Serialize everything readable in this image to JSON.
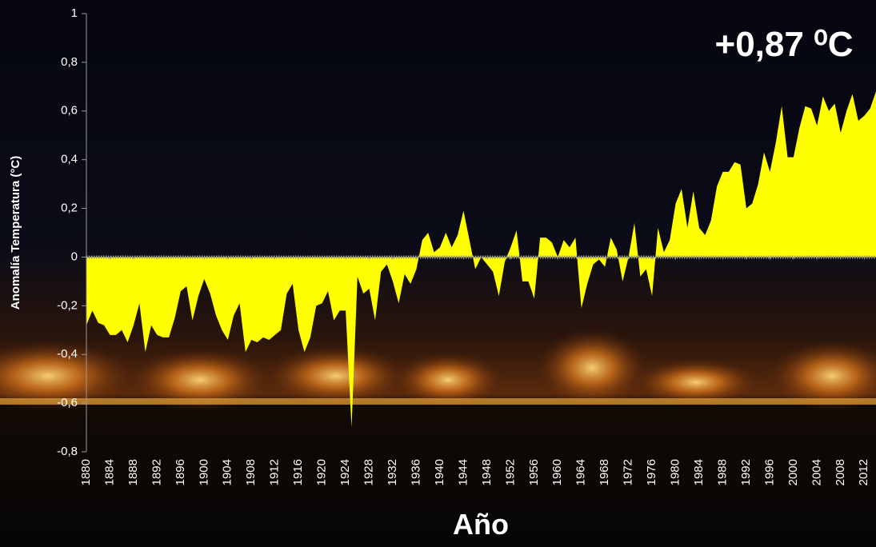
{
  "chart_data": {
    "type": "area",
    "annotation": "+0,87 ⁰C",
    "y_label": "Anomalía Temperatura (°C)",
    "x_label": "Año",
    "color": "#ffff00",
    "xlim": [
      1880,
      2014
    ],
    "xticks": [
      1880,
      1884,
      1888,
      1892,
      1896,
      1900,
      1904,
      1908,
      1912,
      1916,
      1920,
      1924,
      1928,
      1932,
      1936,
      1940,
      1944,
      1948,
      1952,
      1956,
      1960,
      1964,
      1968,
      1972,
      1976,
      1980,
      1984,
      1988,
      1992,
      1996,
      2000,
      2004,
      2008,
      2012
    ],
    "ylim": [
      -0.8,
      1
    ],
    "yticks": [
      {
        "value": -0.8,
        "label": "-0,8"
      },
      {
        "value": -0.6,
        "label": "-0,6"
      },
      {
        "value": -0.4,
        "label": "-0,4"
      },
      {
        "value": -0.2,
        "label": "-0,2"
      },
      0,
      {
        "value": 0.2,
        "label": "0,2"
      },
      {
        "value": 0.4,
        "label": "0,4"
      },
      {
        "value": 0.6,
        "label": "0,6"
      },
      {
        "value": 0.8,
        "label": "0,8"
      },
      1
    ],
    "x": [
      1880,
      1881,
      1882,
      1883,
      1884,
      1885,
      1886,
      1887,
      1888,
      1889,
      1890,
      1891,
      1892,
      1893,
      1894,
      1895,
      1896,
      1897,
      1898,
      1899,
      1900,
      1901,
      1902,
      1903,
      1904,
      1905,
      1906,
      1907,
      1908,
      1909,
      1910,
      1911,
      1912,
      1913,
      1914,
      1915,
      1916,
      1917,
      1918,
      1919,
      1920,
      1921,
      1922,
      1923,
      1924,
      1925,
      1926,
      1927,
      1928,
      1929,
      1930,
      1931,
      1932,
      1933,
      1934,
      1935,
      1936,
      1937,
      1938,
      1939,
      1940,
      1941,
      1942,
      1943,
      1944,
      1945,
      1946,
      1947,
      1948,
      1949,
      1950,
      1951,
      1952,
      1953,
      1954,
      1955,
      1956,
      1957,
      1958,
      1959,
      1960,
      1961,
      1962,
      1963,
      1964,
      1965,
      1966,
      1967,
      1968,
      1969,
      1970,
      1971,
      1972,
      1973,
      1974,
      1975,
      1976,
      1977,
      1978,
      1979,
      1980,
      1981,
      1982,
      1983,
      1984,
      1985,
      1986,
      1987,
      1988,
      1989,
      1990,
      1991,
      1992,
      1993,
      1994,
      1995,
      1996,
      1997,
      1998,
      1999,
      2000,
      2001,
      2002,
      2003,
      2004,
      2005,
      2006,
      2007,
      2008,
      2009,
      2010,
      2011,
      2012,
      2013,
      2014
    ],
    "values": [
      -0.28,
      -0.22,
      -0.27,
      -0.28,
      -0.32,
      -0.32,
      -0.3,
      -0.35,
      -0.28,
      -0.19,
      -0.39,
      -0.28,
      -0.32,
      -0.33,
      -0.33,
      -0.25,
      -0.14,
      -0.12,
      -0.26,
      -0.16,
      -0.09,
      -0.15,
      -0.24,
      -0.3,
      -0.34,
      -0.24,
      -0.19,
      -0.39,
      -0.34,
      -0.35,
      -0.33,
      -0.34,
      -0.32,
      -0.3,
      -0.15,
      -0.11,
      -0.3,
      -0.39,
      -0.33,
      -0.2,
      -0.19,
      -0.14,
      -0.26,
      -0.22,
      -0.22,
      -0.7,
      -0.08,
      -0.15,
      -0.13,
      -0.26,
      -0.06,
      -0.03,
      -0.1,
      -0.19,
      -0.07,
      -0.11,
      -0.05,
      0.07,
      0.1,
      0.02,
      0.04,
      0.1,
      0.04,
      0.09,
      0.19,
      0.07,
      -0.05,
      0.0,
      -0.03,
      -0.06,
      -0.16,
      -0.02,
      0.04,
      0.11,
      -0.1,
      -0.1,
      -0.17,
      0.08,
      0.08,
      0.06,
      0.0,
      0.07,
      0.04,
      0.08,
      -0.21,
      -0.11,
      -0.03,
      -0.01,
      -0.04,
      0.08,
      0.03,
      -0.1,
      0.0,
      0.14,
      -0.08,
      -0.05,
      -0.16,
      0.12,
      0.02,
      0.07,
      0.22,
      0.28,
      0.12,
      0.27,
      0.12,
      0.09,
      0.15,
      0.29,
      0.35,
      0.35,
      0.39,
      0.38,
      0.2,
      0.22,
      0.3,
      0.43,
      0.35,
      0.47,
      0.62,
      0.41,
      0.41,
      0.53,
      0.62,
      0.61,
      0.54,
      0.66,
      0.6,
      0.63,
      0.51,
      0.6,
      0.67,
      0.56,
      0.58,
      0.61,
      0.68
    ]
  }
}
